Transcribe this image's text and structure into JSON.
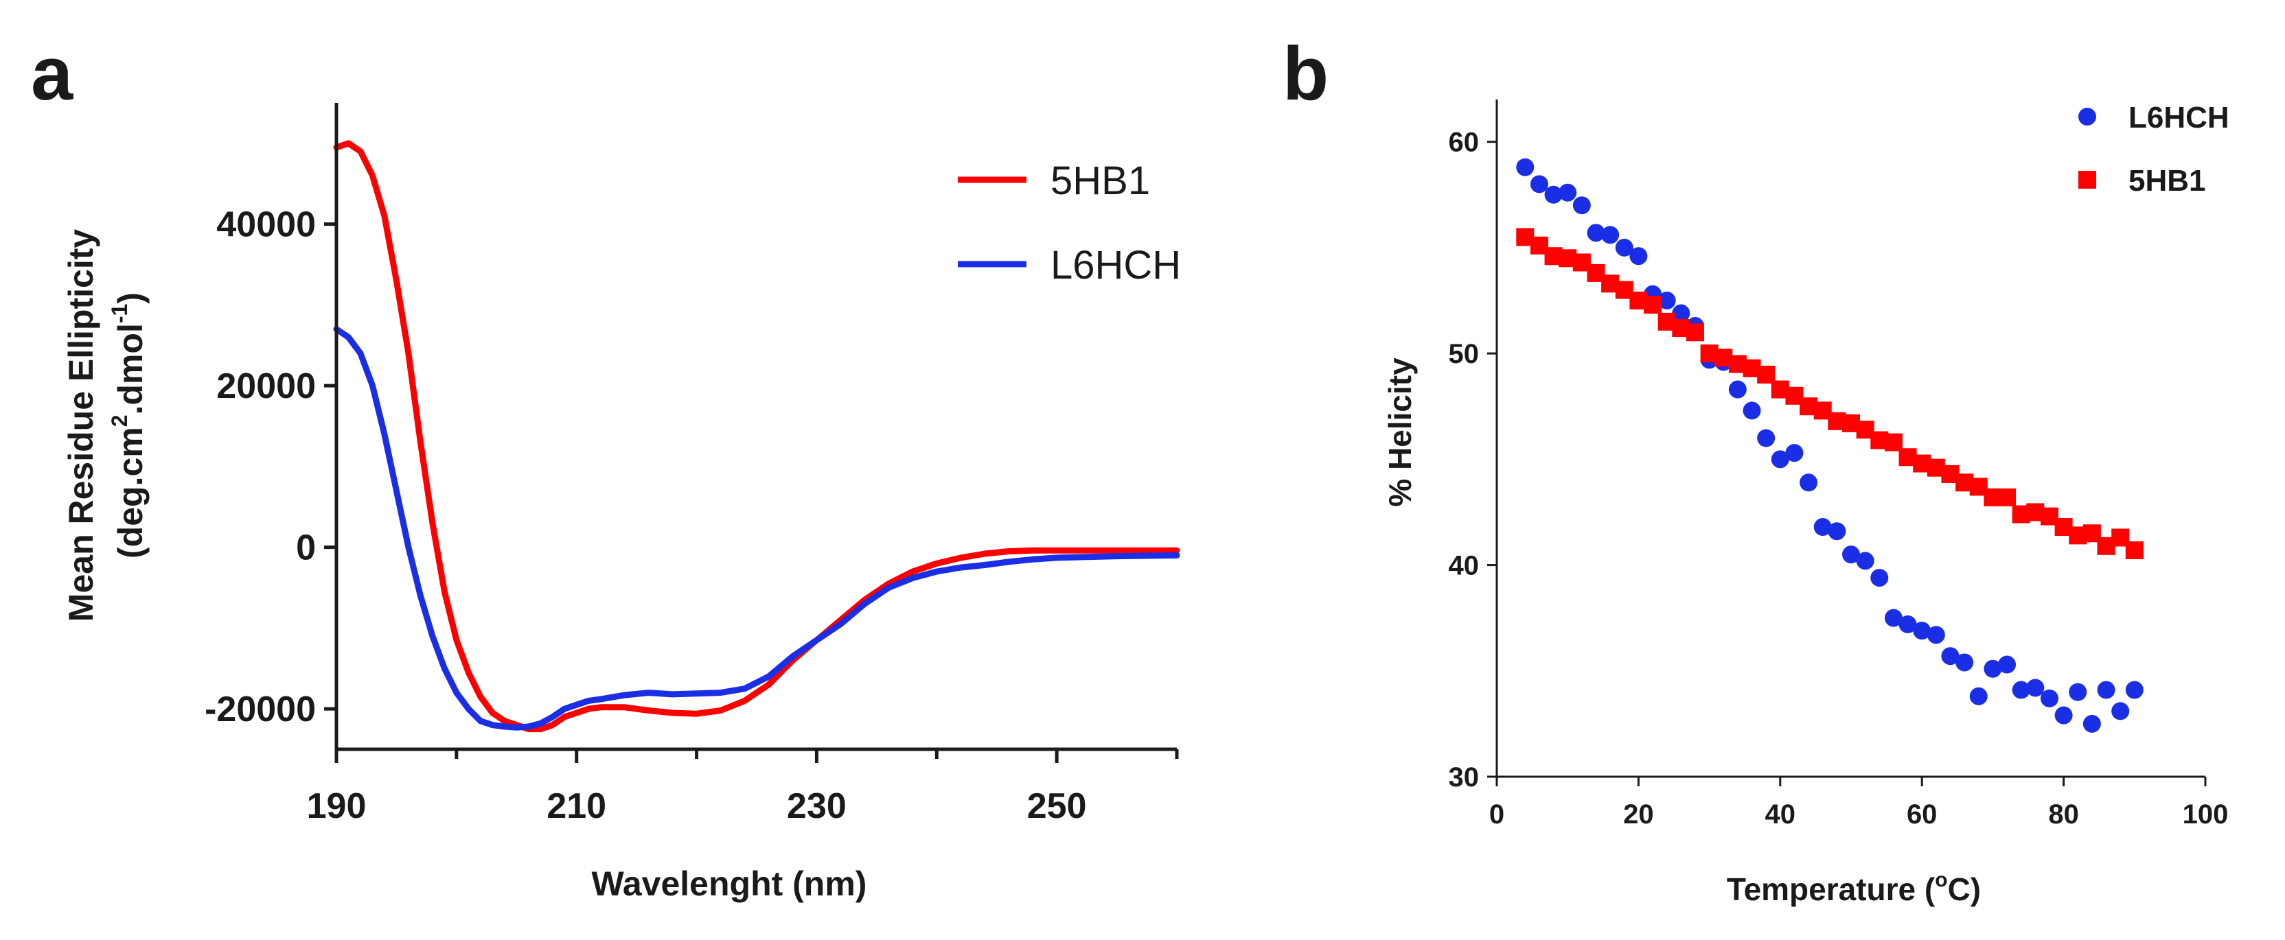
{
  "panels": {
    "a": "a",
    "b": "b"
  },
  "chart_data": [
    {
      "type": "line",
      "panel": "a",
      "xlabel": "Wavelenght (nm)",
      "ylabel_line1": "Mean Residue Ellipticity",
      "ylabel_line2_prefix": "(deg.cm",
      "ylabel_sup1": "2",
      "ylabel_line2_mid": ".dmol",
      "ylabel_sup2": "-1",
      "ylabel_line2_suffix": ")",
      "xlim": [
        190,
        260
      ],
      "ylim": [
        -25000,
        55000
      ],
      "xticks": [
        190,
        210,
        230,
        250
      ],
      "xminor": [
        200,
        220,
        240,
        260
      ],
      "yticks": [
        -20000,
        0,
        20000,
        40000
      ],
      "ytick_labels": [
        "-20000",
        "0",
        "20000",
        "40000"
      ],
      "legend": "top-right",
      "series": [
        {
          "name": "5HB1",
          "color": "#ff0000",
          "x": [
            190,
            191,
            192,
            193,
            194,
            195,
            196,
            197,
            198,
            199,
            200,
            201,
            202,
            203,
            204,
            205,
            206,
            207,
            208,
            209,
            210,
            211,
            212,
            214,
            216,
            218,
            220,
            222,
            224,
            226,
            228,
            230,
            232,
            234,
            236,
            238,
            240,
            242,
            244,
            246,
            248,
            250,
            255,
            260
          ],
          "y": [
            49500,
            50000,
            49000,
            46000,
            41000,
            33000,
            24000,
            13000,
            3000,
            -5500,
            -11500,
            -15500,
            -18500,
            -20500,
            -21500,
            -22000,
            -22500,
            -22500,
            -22000,
            -21000,
            -20500,
            -20000,
            -19800,
            -19800,
            -20200,
            -20500,
            -20600,
            -20200,
            -19000,
            -17000,
            -14000,
            -11500,
            -9000,
            -6500,
            -4500,
            -3000,
            -2000,
            -1300,
            -800,
            -500,
            -400,
            -400,
            -400,
            -400
          ]
        },
        {
          "name": "L6HCH",
          "color": "#1a2ee6",
          "x": [
            190,
            191,
            192,
            193,
            194,
            195,
            196,
            197,
            198,
            199,
            200,
            201,
            202,
            203,
            204,
            205,
            206,
            207,
            208,
            209,
            210,
            211,
            212,
            214,
            216,
            218,
            220,
            222,
            224,
            226,
            228,
            230,
            232,
            234,
            236,
            238,
            240,
            242,
            244,
            246,
            248,
            250,
            255,
            260
          ],
          "y": [
            27000,
            26000,
            24000,
            20000,
            14000,
            7000,
            0,
            -6000,
            -11000,
            -15000,
            -18000,
            -20000,
            -21500,
            -22000,
            -22200,
            -22300,
            -22200,
            -21800,
            -21000,
            -20000,
            -19500,
            -19000,
            -18800,
            -18300,
            -18000,
            -18200,
            -18100,
            -18000,
            -17500,
            -16000,
            -13500,
            -11500,
            -9500,
            -7000,
            -5000,
            -3800,
            -3000,
            -2500,
            -2200,
            -1800,
            -1500,
            -1300,
            -1100,
            -1000
          ]
        }
      ]
    },
    {
      "type": "scatter",
      "panel": "b",
      "xlabel_prefix": "Temperature (",
      "xlabel_sup": "o",
      "xlabel_suffix": "C)",
      "ylabel": "% Helicity",
      "xlim": [
        0,
        100
      ],
      "ylim": [
        30,
        62
      ],
      "xticks": [
        0,
        20,
        40,
        60,
        80,
        100
      ],
      "yticks": [
        30,
        40,
        50,
        60
      ],
      "legend": "top-right",
      "series": [
        {
          "name": "L6HCH",
          "color": "#1a2ee6",
          "marker": "circle",
          "x": [
            4,
            6,
            8,
            10,
            12,
            14,
            16,
            18,
            20,
            22,
            24,
            26,
            28,
            30,
            32,
            34,
            36,
            38,
            40,
            42,
            44,
            46,
            48,
            50,
            52,
            54,
            56,
            58,
            60,
            62,
            64,
            66,
            68,
            70,
            72,
            74,
            76,
            78,
            80,
            82,
            84,
            86,
            88,
            90
          ],
          "y": [
            58.8,
            58.0,
            57.5,
            57.6,
            57.0,
            55.7,
            55.6,
            55.0,
            54.6,
            52.8,
            52.5,
            51.9,
            51.3,
            49.7,
            49.6,
            48.3,
            47.3,
            46.0,
            45.0,
            45.3,
            43.9,
            41.8,
            41.6,
            40.5,
            40.2,
            39.4,
            37.5,
            37.2,
            36.9,
            36.7,
            35.7,
            35.4,
            33.8,
            35.1,
            35.3,
            34.1,
            34.2,
            33.7,
            32.9,
            34.0,
            32.5,
            34.1,
            33.1,
            34.1
          ]
        },
        {
          "name": "5HB1",
          "color": "#ff0000",
          "marker": "square",
          "x": [
            4,
            6,
            8,
            10,
            12,
            14,
            16,
            18,
            20,
            22,
            24,
            26,
            28,
            30,
            32,
            34,
            36,
            38,
            40,
            42,
            44,
            46,
            48,
            50,
            52,
            54,
            56,
            58,
            60,
            62,
            64,
            66,
            68,
            70,
            72,
            74,
            76,
            78,
            80,
            82,
            84,
            86,
            88,
            90
          ],
          "y": [
            55.5,
            55.1,
            54.6,
            54.5,
            54.3,
            53.8,
            53.3,
            53.0,
            52.5,
            52.3,
            51.5,
            51.2,
            51.0,
            50.0,
            49.8,
            49.5,
            49.3,
            49.0,
            48.3,
            48.0,
            47.5,
            47.3,
            46.8,
            46.7,
            46.4,
            45.9,
            45.8,
            45.1,
            44.8,
            44.6,
            44.3,
            43.9,
            43.7,
            43.2,
            43.2,
            42.4,
            42.5,
            42.3,
            41.8,
            41.4,
            41.5,
            40.9,
            41.3,
            40.7
          ]
        }
      ]
    }
  ]
}
